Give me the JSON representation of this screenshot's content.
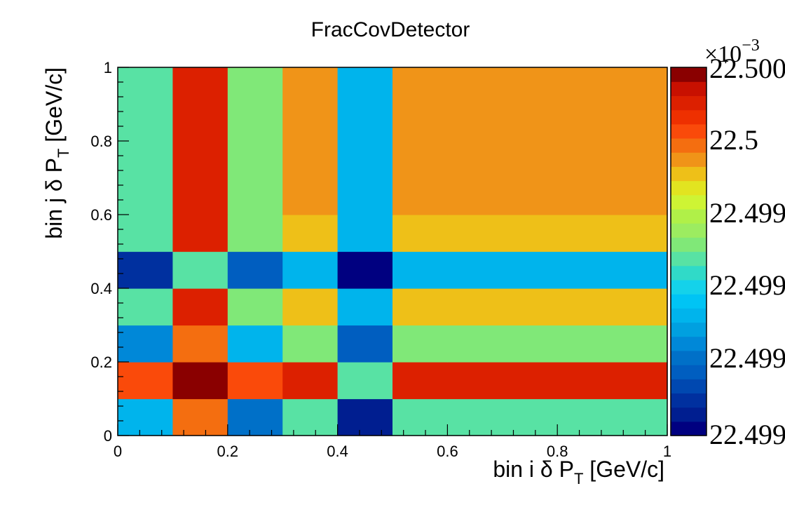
{
  "chart_data": {
    "type": "heatmap",
    "title": "FracCovDetector",
    "xlabel": {
      "main": "bin i δ P",
      "sub": "T",
      "tail": " [GeV/c]"
    },
    "ylabel": {
      "main": "bin j δ P",
      "sub": "T",
      "tail": " [GeV/c]"
    },
    "x_edges": [
      0,
      0.1,
      0.2,
      0.3,
      0.4,
      0.5,
      0.6,
      1.0
    ],
    "y_edges": [
      0,
      0.1,
      0.2,
      0.3,
      0.4,
      0.5,
      0.6,
      1.0
    ],
    "xlim": [
      0,
      1
    ],
    "ylim": [
      0,
      1
    ],
    "x_ticks": [
      "0",
      "0.2",
      "0.4",
      "0.6",
      "0.8",
      "1"
    ],
    "y_ticks": [
      "0",
      "0.2",
      "0.4",
      "0.6",
      "0.8",
      "1"
    ],
    "z_color_index_rows_bottom_to_top": [
      [
        8,
        20,
        5,
        12,
        1,
        12,
        12
      ],
      [
        21,
        25,
        21,
        23,
        12,
        23,
        23
      ],
      [
        6,
        20,
        8,
        13,
        4,
        13,
        13
      ],
      [
        12,
        23,
        13,
        18,
        8,
        18,
        18
      ],
      [
        2,
        12,
        4,
        8,
        0,
        8,
        8
      ],
      [
        12,
        23,
        13,
        18,
        8,
        18,
        18
      ],
      [
        12,
        23,
        13,
        19,
        8,
        19,
        19
      ]
    ],
    "palette": [
      "#000080",
      "#001e90",
      "#00309f",
      "#0048b0",
      "#005ec0",
      "#0070c8",
      "#0088d8",
      "#00a0e0",
      "#00b4ec",
      "#00c4f4",
      "#14d2ea",
      "#30dac8",
      "#58e2a4",
      "#80e878",
      "#9cec60",
      "#b0f048",
      "#cef434",
      "#e2e420",
      "#eec018",
      "#f09418",
      "#f46e10",
      "#fa4a0a",
      "#ee3000",
      "#dc2000",
      "#c81000",
      "#8a0000"
    ],
    "colorbar_labels": [
      "22.500",
      "22.5",
      "22.499",
      "22.499",
      "22.499",
      "22.499"
    ],
    "colorbar_exponent": {
      "base": "×10",
      "exp": "−3"
    },
    "grid": false
  }
}
